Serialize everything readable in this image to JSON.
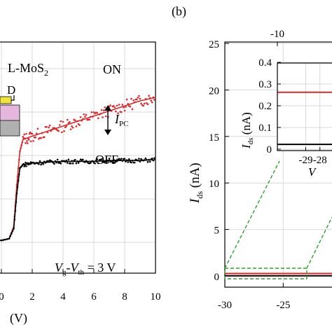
{
  "colors": {
    "on": "#e0262b",
    "off": "#000000",
    "dashed": "#2ca02c",
    "grid": "#d9d9d9",
    "device_top": "#e6b7dc",
    "device_bottom": "#b0b0b0",
    "contact": "#f2e33a"
  },
  "labels": {
    "panel_b": "(b)",
    "material": "L-MoS",
    "material_sub": "2",
    "drain": "D",
    "on": "ON",
    "off": "OFF",
    "ipc_main": "I",
    "ipc_sub": "PC",
    "cond_v1": "V",
    "cond_g": "g",
    "cond_dash": "-",
    "cond_v2": "V",
    "cond_th": "th",
    "cond_val": " = 3 V",
    "left_xlabel_partial": "(V)",
    "right_ylabel_main": "I",
    "right_ylabel_sub": "ds",
    "right_ylabel_unit": " (nA)",
    "right_top_tick": "-10",
    "inset_ylabel_main": "I",
    "inset_ylabel_sub": "ds",
    "inset_ylabel_unit": " (nA)",
    "inset_xlabel_partial": "V"
  },
  "chart_data": [
    {
      "type": "scatter",
      "xlim": [
        -1,
        10
      ],
      "xticks": [
        0,
        2,
        4,
        6,
        8,
        10
      ],
      "grid": true,
      "series": [
        {
          "name": "ON",
          "x": [
            -1,
            0,
            0.5,
            0.8,
            1.0,
            1.2,
            1.4,
            2,
            3,
            4,
            5,
            6,
            7,
            8,
            9,
            10
          ],
          "y": [
            0.02,
            0.02,
            0.03,
            0.1,
            0.35,
            0.55,
            0.62,
            0.64,
            0.67,
            0.7,
            0.73,
            0.76,
            0.79,
            0.82,
            0.85,
            0.87
          ]
        },
        {
          "name": "OFF",
          "x": [
            -1,
            0,
            0.5,
            0.8,
            1.0,
            1.2,
            1.4,
            2,
            3,
            4,
            5,
            6,
            7,
            8,
            9,
            10
          ],
          "y": [
            0.02,
            0.02,
            0.03,
            0.09,
            0.3,
            0.45,
            0.47,
            0.48,
            0.485,
            0.49,
            0.49,
            0.49,
            0.495,
            0.495,
            0.495,
            0.5
          ]
        }
      ]
    },
    {
      "type": "line",
      "xlim": [
        -30,
        -20.4
      ],
      "xticks": [
        -30,
        -25
      ],
      "ylim": [
        0,
        25
      ],
      "yticks": [
        0,
        5,
        10,
        15,
        20,
        25
      ],
      "grid": true,
      "series": [
        {
          "name": "ON",
          "x": [
            -30,
            -20.4
          ],
          "y": [
            0.26,
            0.26
          ]
        },
        {
          "name": "OFF",
          "x": [
            -30,
            -20.4
          ],
          "y": [
            0.02,
            0.02
          ]
        }
      ]
    },
    {
      "type": "line",
      "xlim": [
        -31,
        -26.8
      ],
      "xticks": [
        -29,
        -28
      ],
      "xticklabels": [
        "-29",
        "-28"
      ],
      "ylim": [
        0,
        0.4
      ],
      "yticks": [
        0,
        0.1,
        0.2,
        0.3,
        0.4
      ],
      "yticklabels": [
        "0",
        "0.1",
        "0.2",
        "0.3",
        "0.4"
      ],
      "grid": true,
      "series": [
        {
          "name": "ON",
          "x": [
            -31,
            -26.8
          ],
          "y": [
            0.262,
            0.262
          ]
        },
        {
          "name": "OFF",
          "x": [
            -31,
            -26.8
          ],
          "y": [
            0.022,
            0.022
          ]
        }
      ]
    }
  ]
}
